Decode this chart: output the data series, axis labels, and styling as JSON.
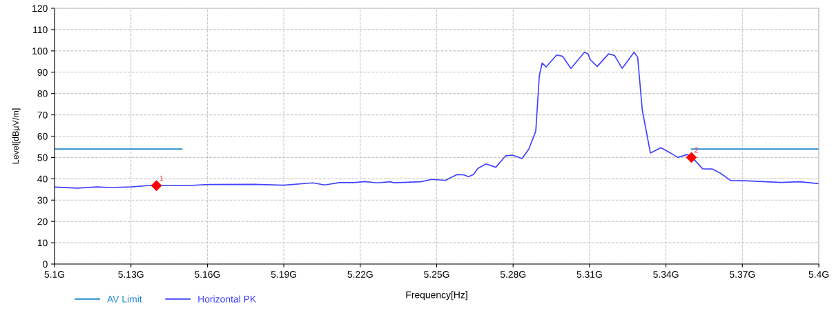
{
  "chart_data": {
    "type": "line",
    "xlabel": "Frequency[Hz]",
    "ylabel": "Level[dBμV/m]",
    "xlim": [
      5.1,
      5.4
    ],
    "xticks": [
      {
        "value": 5.1,
        "label": "5.1G"
      },
      {
        "value": 5.13,
        "label": "5.13G"
      },
      {
        "value": 5.16,
        "label": "5.16G"
      },
      {
        "value": 5.19,
        "label": "5.19G"
      },
      {
        "value": 5.22,
        "label": "5.22G"
      },
      {
        "value": 5.25,
        "label": "5.25G"
      },
      {
        "value": 5.28,
        "label": "5.28G"
      },
      {
        "value": 5.31,
        "label": "5.31G"
      },
      {
        "value": 5.34,
        "label": "5.34G"
      },
      {
        "value": 5.37,
        "label": "5.37G"
      },
      {
        "value": 5.4,
        "label": "5.4G"
      }
    ],
    "ylim": [
      0,
      120
    ],
    "yticks": [
      0,
      10,
      20,
      30,
      40,
      50,
      60,
      70,
      80,
      90,
      100,
      110,
      120
    ],
    "grid": true,
    "legend": "bottom left",
    "line_style": "solid",
    "series": [
      {
        "name": "AV Limit",
        "color": "#1e88c8",
        "marker": "none",
        "x": [
          5.1,
          5.15,
          5.25,
          5.35,
          5.4
        ],
        "values": [
          54,
          54,
          null,
          54,
          54
        ]
      },
      {
        "name": "Horizontal PK",
        "color": "#4040ff",
        "marker": "none",
        "x": [
          5.1,
          5.109,
          5.1166,
          5.1223,
          5.13,
          5.1366,
          5.1518,
          5.1604,
          5.1785,
          5.1899,
          5.2013,
          5.2061,
          5.2118,
          5.2175,
          5.2218,
          5.2266,
          5.2318,
          5.2332,
          5.2437,
          5.248,
          5.2535,
          5.258,
          5.2607,
          5.2625,
          5.2644,
          5.2662,
          5.2694,
          5.2732,
          5.2771,
          5.2798,
          5.2835,
          5.2862,
          5.2889,
          5.2903,
          5.2914,
          5.293,
          5.2971,
          5.2994,
          5.3027,
          5.308,
          5.3094,
          5.3103,
          5.313,
          5.3175,
          5.3198,
          5.3228,
          5.3275,
          5.3289,
          5.3307,
          5.3339,
          5.338,
          5.3424,
          5.3446,
          5.3484,
          5.3503,
          5.3544,
          5.3581,
          5.3613,
          5.3654,
          5.3723,
          5.3851,
          5.3925,
          5.4
        ],
        "values": [
          36.1,
          35.6,
          36.2,
          35.9,
          36.2,
          36.8,
          36.8,
          37.3,
          37.4,
          37.0,
          38.1,
          37.1,
          38.2,
          38.2,
          38.7,
          38.1,
          38.6,
          38.1,
          38.6,
          39.7,
          39.3,
          42.0,
          41.8,
          41.0,
          42.0,
          44.9,
          47.0,
          45.4,
          50.8,
          51.1,
          49.5,
          54.0,
          62.4,
          88.4,
          94.3,
          92.5,
          98.1,
          97.5,
          91.8,
          99.4,
          98.6,
          95.9,
          92.7,
          98.6,
          97.9,
          91.8,
          99.4,
          97.0,
          72.3,
          52.1,
          54.6,
          51.7,
          50.0,
          51.4,
          50.0,
          44.7,
          44.6,
          42.7,
          39.2,
          39.0,
          38.3,
          38.6,
          37.7
        ]
      },
      {
        "type": "scatter",
        "color": "#ff0000",
        "marker": "diamond",
        "x": [
          5.14,
          5.35
        ],
        "values": [
          36.8,
          50.0
        ]
      }
    ],
    "annotations": [
      {
        "text": "1",
        "x": 5.14,
        "y": 36.8
      },
      {
        "text": "2",
        "x": 5.35,
        "y": 50.0
      }
    ]
  }
}
